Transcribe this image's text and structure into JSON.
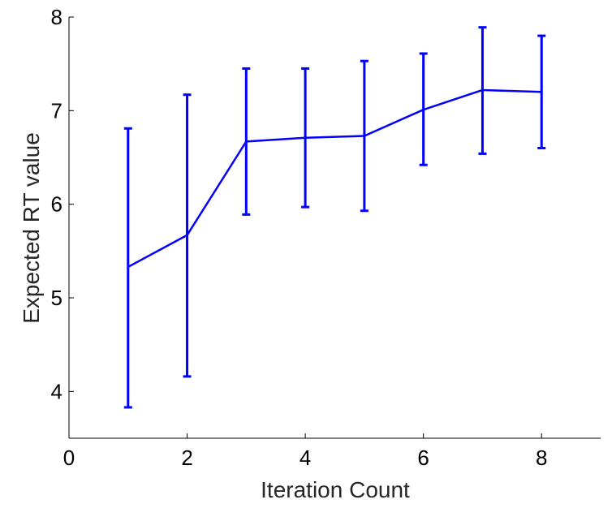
{
  "chart_data": {
    "type": "line",
    "xlabel": "Iteration Count",
    "ylabel": "Expected RT value",
    "xlim": [
      0,
      9
    ],
    "ylim": [
      3.5,
      8
    ],
    "xticks": [
      0,
      2,
      4,
      6,
      8
    ],
    "yticks": [
      4,
      5,
      6,
      7,
      8
    ],
    "xtick_labels": [
      "0",
      "2",
      "4",
      "6",
      "8"
    ],
    "ytick_labels": [
      "4",
      "5",
      "6",
      "7",
      "8"
    ],
    "grid": false,
    "series": [
      {
        "x": [
          1,
          2,
          3,
          4,
          5,
          6,
          7,
          8
        ],
        "y": [
          5.33,
          5.67,
          6.67,
          6.71,
          6.73,
          7.01,
          7.22,
          7.2
        ],
        "lower": [
          3.83,
          4.16,
          5.89,
          5.97,
          5.93,
          6.42,
          6.54,
          6.6
        ],
        "upper": [
          6.81,
          7.17,
          7.45,
          7.45,
          7.53,
          7.61,
          7.89,
          7.8
        ],
        "color": "#0000ff"
      }
    ]
  }
}
